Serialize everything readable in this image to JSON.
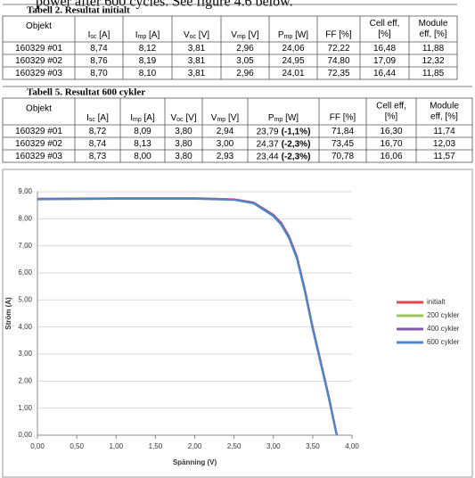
{
  "intro": "power after 600 cycles. See figure 4.6 below.",
  "tables": [
    {
      "title": "Tabell 2. Resultat initialt",
      "header": [
        {
          "lines": [
            "Objekt"
          ]
        },
        {
          "base": "I",
          "sub": "sc",
          "unit": " [A]"
        },
        {
          "base": "I",
          "sub": "mp",
          "unit": " [A]"
        },
        {
          "base": "V",
          "sub": "oc",
          "unit": " [V]"
        },
        {
          "base": "V",
          "sub": "mp",
          "unit": " [V]"
        },
        {
          "base": "P",
          "sub": "mp",
          "unit": " [W]"
        },
        {
          "lines": [
            "FF [%]"
          ]
        },
        {
          "lines": [
            "Cell eff,",
            "[%]"
          ]
        },
        {
          "lines": [
            "Module",
            "eff, [%]"
          ]
        }
      ],
      "rows": [
        [
          "160329 #01",
          "8,74",
          "8,12",
          "3,81",
          "2,96",
          "24,06",
          "72,22",
          "16,48",
          "11,88"
        ],
        [
          "160329 #02",
          "8,76",
          "8,19",
          "3,81",
          "3,05",
          "24,95",
          "74,80",
          "17,09",
          "12,32"
        ],
        [
          "160329 #03",
          "8,70",
          "8,10",
          "3,81",
          "2,96",
          "24,01",
          "72,35",
          "16,44",
          "11,85"
        ]
      ]
    },
    {
      "title": "Tabell 5. Resultat 600 cykler",
      "header": [
        {
          "lines": [
            "Objekt"
          ]
        },
        {
          "base": "I",
          "sub": "sc",
          "unit": " [A]"
        },
        {
          "base": "I",
          "sub": "mp",
          "unit": " [A]"
        },
        {
          "base": "V",
          "sub": "oc",
          "unit": " [V]"
        },
        {
          "base": "V",
          "sub": "mp",
          "unit": " [V]"
        },
        {
          "base": "P",
          "sub": "mp",
          "unit": " [W]"
        },
        {
          "lines": [
            "FF [%]"
          ]
        },
        {
          "lines": [
            "Cell eff,",
            "[%]"
          ]
        },
        {
          "lines": [
            "Module",
            "eff, [%]"
          ]
        }
      ],
      "rows": [
        [
          "160329 #01",
          "8,72",
          "8,09",
          "3,80",
          "2,94",
          {
            "value": "23,79",
            "change": "(-1,1%)"
          },
          "71,84",
          "16,30",
          "11,74"
        ],
        [
          "160329 #02",
          "8,74",
          "8,13",
          "3,80",
          "3,00",
          {
            "value": "24,37",
            "change": "(-2,3%)"
          },
          "73,45",
          "16,70",
          "12,03"
        ],
        [
          "160329 #03",
          "8,73",
          "8,00",
          "3,80",
          "2,93",
          {
            "value": "23,44",
            "change": "(-2,3%)"
          },
          "70,78",
          "16,06",
          "11,57"
        ]
      ]
    }
  ],
  "chart_data": {
    "type": "line",
    "x_label": "Spänning (V)",
    "y_label": "Ström (A)",
    "x": [
      0,
      0.5,
      1,
      1.5,
      2,
      2.5,
      2.75,
      3,
      3.1,
      3.2,
      3.3,
      3.4,
      3.5,
      3.6,
      3.7,
      3.8,
      3.81
    ],
    "series": [
      {
        "name": "initialt",
        "color": "#e2474f",
        "values": [
          8.74,
          8.75,
          8.76,
          8.76,
          8.76,
          8.72,
          8.6,
          8.15,
          7.85,
          7.35,
          6.6,
          5.4,
          4.0,
          2.75,
          1.5,
          0.1,
          0
        ]
      },
      {
        "name": "200 cykler",
        "color": "#9bc45a",
        "values": [
          8.72,
          8.73,
          8.74,
          8.75,
          8.75,
          8.71,
          8.58,
          8.12,
          7.8,
          7.3,
          6.55,
          5.35,
          3.95,
          2.7,
          1.45,
          0.08,
          0
        ]
      },
      {
        "name": "400 cykler",
        "color": "#7e5ba8",
        "values": [
          8.73,
          8.74,
          8.75,
          8.75,
          8.75,
          8.71,
          8.59,
          8.13,
          7.82,
          7.32,
          6.57,
          5.37,
          3.97,
          2.72,
          1.47,
          0.09,
          0
        ]
      },
      {
        "name": "600 cykler",
        "color": "#4f86c6",
        "values": [
          8.72,
          8.73,
          8.74,
          8.74,
          8.74,
          8.7,
          8.57,
          8.1,
          7.78,
          7.28,
          6.52,
          5.32,
          3.92,
          2.68,
          1.43,
          0.06,
          0
        ]
      }
    ],
    "xlim": [
      0,
      4
    ],
    "ylim": [
      0,
      9
    ],
    "xticks": [
      {
        "value": 0,
        "label": "0,00"
      },
      {
        "value": 0.5,
        "label": "0,50"
      },
      {
        "value": 1,
        "label": "1,00"
      },
      {
        "value": 1.5,
        "label": "1,50"
      },
      {
        "value": 2,
        "label": "2,00"
      },
      {
        "value": 2.5,
        "label": "2,50"
      },
      {
        "value": 3,
        "label": "3,00"
      },
      {
        "value": 3.5,
        "label": "3,50"
      },
      {
        "value": 4,
        "label": "4,00"
      }
    ],
    "yticks": [
      {
        "value": 0,
        "label": "0,00"
      },
      {
        "value": 1,
        "label": "1,00"
      },
      {
        "value": 2,
        "label": "2,00"
      },
      {
        "value": 3,
        "label": "3,00"
      },
      {
        "value": 4,
        "label": "4,00"
      },
      {
        "value": 5,
        "label": "5,00"
      },
      {
        "value": 6,
        "label": "6,00"
      },
      {
        "value": 7,
        "label": "7,00"
      },
      {
        "value": 8,
        "label": "8,00"
      },
      {
        "value": 9,
        "label": "9,00"
      }
    ],
    "grid": true,
    "legend": "right"
  }
}
